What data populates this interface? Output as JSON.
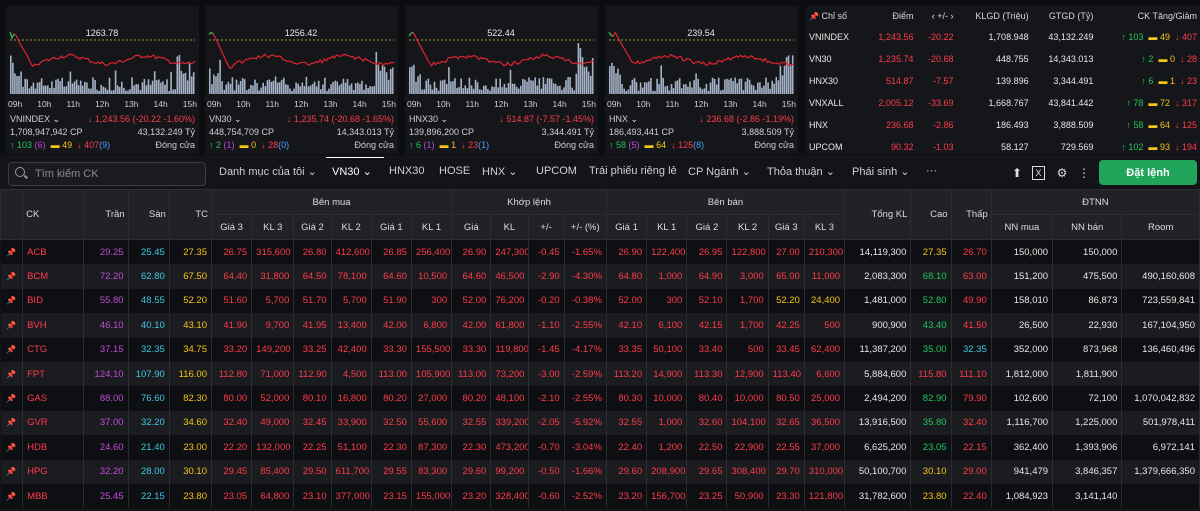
{
  "charts": [
    {
      "ref": "1263.78",
      "name": "VNINDEX",
      "change": "↓ 1,243.56 (-20.22 -1.60%)",
      "volume": "1,708,947,942 CP",
      "value": "43,132.249 Tỷ",
      "up": "↑ 103",
      "up_n": "(6)",
      "ref_cnt": "49",
      "down": "↓ 407",
      "down_n": "(9)",
      "status": "Đóng cửa"
    },
    {
      "ref": "1256.42",
      "name": "VN30",
      "change": "↓ 1,235.74 (-20.68 -1.65%)",
      "volume": "448,754,709 CP",
      "value": "14,343.013 Tỷ",
      "up": "↑ 2",
      "up_n": "(1)",
      "ref_cnt": "0",
      "down": "↓ 28",
      "down_n": "(0)",
      "status": "Đóng cửa"
    },
    {
      "ref": "522.44",
      "name": "HNX30",
      "change": "↓ 514.87 (-7.57 -1.45%)",
      "volume": "139,896,200 CP",
      "value": "3,344.491 Tỷ",
      "up": "↑ 6",
      "up_n": "(1)",
      "ref_cnt": "1",
      "down": "↓ 23",
      "down_n": "(1)",
      "status": "Đóng cửa"
    },
    {
      "ref": "239.54",
      "name": "HNX",
      "change": "↓ 236.68 (-2.86 -1.19%)",
      "volume": "186,493,441 CP",
      "value": "3,888.509 Tỷ",
      "up": "↑ 58",
      "up_n": "(5)",
      "ref_cnt": "64",
      "down": "↓ 125",
      "down_n": "(8)",
      "status": "Đóng cửa"
    }
  ],
  "chart_times": [
    "09h",
    "10h",
    "11h",
    "12h",
    "13h",
    "14h",
    "15h"
  ],
  "index_table": {
    "headers": [
      "Chỉ số",
      "Điểm",
      "+/-",
      "KLGD (Triệu)",
      "GTGD (Tỷ)",
      "CK Tăng/Giảm"
    ],
    "rows": [
      {
        "name": "VNINDEX",
        "point": "1,243.56",
        "chg": "-20.22",
        "vol": "1,708.948",
        "val": "43,132.249",
        "up": "↑ 103",
        "ref": "49",
        "down": "↓ 407"
      },
      {
        "name": "VN30",
        "point": "1,235.74",
        "chg": "-20.68",
        "vol": "448.755",
        "val": "14,343.013",
        "up": "↑ 2",
        "ref": "0",
        "down": "↓ 28"
      },
      {
        "name": "HNX30",
        "point": "514.87",
        "chg": "-7.57",
        "vol": "139.896",
        "val": "3,344.491",
        "up": "↑ 6",
        "ref": "1",
        "down": "↓ 23"
      },
      {
        "name": "VNXALL",
        "point": "2,005.12",
        "chg": "-33.69",
        "vol": "1,668.767",
        "val": "43,841.442",
        "up": "↑ 78",
        "ref": "72",
        "down": "↓ 317"
      },
      {
        "name": "HNX",
        "point": "236.68",
        "chg": "-2.86",
        "vol": "186.493",
        "val": "3,888.509",
        "up": "↑ 58",
        "ref": "64",
        "down": "↓ 125"
      },
      {
        "name": "UPCOM",
        "point": "90.32",
        "chg": "-1.03",
        "vol": "58.127",
        "val": "729.569",
        "up": "↑ 102",
        "ref": "93",
        "down": "↓ 194"
      }
    ]
  },
  "toolbar": {
    "search_placeholder": "Tìm kiếm CK",
    "tabs": [
      "Danh mục của tôi",
      "VN30",
      "HNX30",
      "HOSE",
      "HNX",
      "UPCOM",
      "Trái phiếu riêng lẻ",
      "CP Ngành",
      "Thỏa thuận",
      "Phái sinh",
      "···"
    ],
    "order_label": "Đặt lệnh"
  },
  "board": {
    "group_headers": {
      "buy": "Bên mua",
      "match": "Khớp lệnh",
      "sell": "Bên bán",
      "foreign": "ĐTNN"
    },
    "headers": {
      "ck": "CK",
      "tran": "Trần",
      "san": "Sàn",
      "tc": "TC",
      "g3": "Giá 3",
      "kl3": "KL 3",
      "g2": "Giá 2",
      "kl2": "KL 2",
      "g1": "Giá 1",
      "kl1": "KL 1",
      "mp": "Giá",
      "mkl": "KL",
      "pm": "+/-",
      "pmp": "+/- (%)",
      "sg1": "Giá 1",
      "skl1": "KL 1",
      "sg2": "Giá 2",
      "skl2": "KL 2",
      "sg3": "Giá 3",
      "skl3": "KL 3",
      "tkl": "Tổng KL",
      "cao": "Cao",
      "thap": "Thấp",
      "nnm": "NN mua",
      "nnb": "NN bán",
      "room": "Room"
    },
    "rows": [
      [
        "ACB",
        "29.25",
        "25.45",
        "27.35",
        "26.75",
        "315,600",
        "26.80",
        "412,600",
        "26.85",
        "256,400",
        "26.90",
        "247,300",
        "-0.45",
        "-1.65%",
        "26.90",
        "122,400",
        "26.95",
        "122,800",
        "27.00",
        "210,300",
        "14,119,300",
        "27.35",
        "26.70",
        "150,000",
        "150,000",
        ""
      ],
      [
        "BCM",
        "72.20",
        "62.80",
        "67.50",
        "64.40",
        "31,800",
        "64.50",
        "78,100",
        "64.60",
        "10,500",
        "64.60",
        "46,500",
        "-2.90",
        "-4.30%",
        "64.80",
        "1,000",
        "64.90",
        "3,000",
        "65.00",
        "11,000",
        "2,083,300",
        "68.10",
        "63.00",
        "151,200",
        "475,500",
        "490,160,608"
      ],
      [
        "BID",
        "55.80",
        "48.55",
        "52.20",
        "51.60",
        "5,700",
        "51.70",
        "5,700",
        "51.90",
        "300",
        "52.00",
        "76,200",
        "-0.20",
        "-0.38%",
        "52.00",
        "300",
        "52.10",
        "1,700",
        "52.20",
        "24,400",
        "1,481,000",
        "52.80",
        "49.90",
        "158,010",
        "86,873",
        "723,559,841"
      ],
      [
        "BVH",
        "46.10",
        "40.10",
        "43.10",
        "41.90",
        "9,700",
        "41.95",
        "13,400",
        "42.00",
        "6,800",
        "42.00",
        "61,800",
        "-1.10",
        "-2.55%",
        "42.10",
        "6,100",
        "42.15",
        "1,700",
        "42.25",
        "500",
        "900,900",
        "43.40",
        "41.50",
        "26,500",
        "22,930",
        "167,104,950"
      ],
      [
        "CTG",
        "37.15",
        "32.35",
        "34.75",
        "33.20",
        "149,200",
        "33.25",
        "42,400",
        "33.30",
        "155,500",
        "33.30",
        "119,800",
        "-1.45",
        "-4.17%",
        "33.35",
        "50,100",
        "33.40",
        "500",
        "33.45",
        "62,400",
        "11,387,200",
        "35.00",
        "32.35",
        "352,000",
        "873,968",
        "136,460,496"
      ],
      [
        "FPT",
        "124.10",
        "107.90",
        "116.00",
        "112.80",
        "71,000",
        "112.90",
        "4,500",
        "113.00",
        "105,900",
        "113.00",
        "73,200",
        "-3.00",
        "-2.59%",
        "113.20",
        "14,900",
        "113.30",
        "12,900",
        "113.40",
        "6,600",
        "5,884,600",
        "115.80",
        "111.10",
        "1,812,000",
        "1,811,900",
        ""
      ],
      [
        "GAS",
        "88.00",
        "76.60",
        "82.30",
        "80.00",
        "52,000",
        "80.10",
        "16,800",
        "80.20",
        "27,000",
        "80.20",
        "48,100",
        "-2.10",
        "-2.55%",
        "80.30",
        "10,000",
        "80.40",
        "10,000",
        "80.50",
        "25,000",
        "2,494,200",
        "82.90",
        "79.90",
        "102,600",
        "72,100",
        "1,070,042,832"
      ],
      [
        "GVR",
        "37.00",
        "32.20",
        "34.60",
        "32.40",
        "49,000",
        "32.45",
        "33,900",
        "32.50",
        "55,600",
        "32.55",
        "339,200",
        "-2.05",
        "-5.92%",
        "32.55",
        "1,000",
        "32.60",
        "104,100",
        "32.65",
        "36,500",
        "13,916,500",
        "35.80",
        "32.40",
        "1,116,700",
        "1,225,000",
        "501,978,411"
      ],
      [
        "HDB",
        "24.60",
        "21.40",
        "23.00",
        "22.20",
        "132,000",
        "22.25",
        "51,100",
        "22.30",
        "87,300",
        "22.30",
        "473,200",
        "-0.70",
        "-3.04%",
        "22.40",
        "1,200",
        "22.50",
        "22,900",
        "22.55",
        "37,000",
        "6,625,200",
        "23.05",
        "22.15",
        "362,400",
        "1,393,906",
        "6,972,141"
      ],
      [
        "HPG",
        "32.20",
        "28.00",
        "30.10",
        "29.45",
        "85,400",
        "29.50",
        "611,700",
        "29.55",
        "83,300",
        "29.60",
        "99,200",
        "-0.50",
        "-1.66%",
        "29.60",
        "208,900",
        "29.65",
        "308,400",
        "29.70",
        "310,000",
        "50,100,700",
        "30.10",
        "29.00",
        "941,479",
        "3,846,357",
        "1,379,666,350"
      ],
      [
        "MBB",
        "25.45",
        "22.15",
        "23.80",
        "23.05",
        "64,800",
        "23.10",
        "377,000",
        "23.15",
        "155,000",
        "23.20",
        "328,400",
        "-0.60",
        "-2.52%",
        "23.20",
        "156,700",
        "23.25",
        "50,900",
        "23.30",
        "121,800",
        "31,782,600",
        "23.80",
        "22.40",
        "1,084,923",
        "3,141,140",
        ""
      ]
    ],
    "colors": [
      [
        "red",
        "purple",
        "cyan",
        "yellow",
        "red",
        "red",
        "red",
        "red",
        "red",
        "red",
        "red",
        "red",
        "red",
        "red",
        "red",
        "red",
        "red",
        "red",
        "red",
        "red",
        "white",
        "yellow",
        "red",
        "white",
        "white",
        "white"
      ],
      [
        "red",
        "purple",
        "cyan",
        "yellow",
        "red",
        "red",
        "red",
        "red",
        "red",
        "red",
        "red",
        "red",
        "red",
        "red",
        "red",
        "red",
        "red",
        "red",
        "red",
        "red",
        "white",
        "green",
        "red",
        "white",
        "white",
        "white"
      ],
      [
        "red",
        "purple",
        "cyan",
        "yellow",
        "red",
        "red",
        "red",
        "red",
        "red",
        "red",
        "red",
        "red",
        "red",
        "red",
        "red",
        "red",
        "red",
        "red",
        "yellow",
        "yellow",
        "white",
        "green",
        "red",
        "white",
        "white",
        "white"
      ],
      [
        "red",
        "purple",
        "cyan",
        "yellow",
        "red",
        "red",
        "red",
        "red",
        "red",
        "red",
        "red",
        "red",
        "red",
        "red",
        "red",
        "red",
        "red",
        "red",
        "red",
        "red",
        "white",
        "green",
        "red",
        "white",
        "white",
        "white"
      ],
      [
        "red",
        "purple",
        "cyan",
        "yellow",
        "red",
        "red",
        "red",
        "red",
        "red",
        "red",
        "red",
        "red",
        "red",
        "red",
        "red",
        "red",
        "red",
        "red",
        "red",
        "red",
        "white",
        "green",
        "cyan",
        "white",
        "white",
        "white"
      ],
      [
        "red",
        "purple",
        "cyan",
        "yellow",
        "red",
        "red",
        "red",
        "red",
        "red",
        "red",
        "red",
        "red",
        "red",
        "red",
        "red",
        "red",
        "red",
        "red",
        "red",
        "red",
        "white",
        "red",
        "red",
        "white",
        "white",
        "white"
      ],
      [
        "red",
        "purple",
        "cyan",
        "yellow",
        "red",
        "red",
        "red",
        "red",
        "red",
        "red",
        "red",
        "red",
        "red",
        "red",
        "red",
        "red",
        "red",
        "red",
        "red",
        "red",
        "white",
        "green",
        "red",
        "white",
        "white",
        "white"
      ],
      [
        "red",
        "purple",
        "cyan",
        "yellow",
        "red",
        "red",
        "red",
        "red",
        "red",
        "red",
        "red",
        "red",
        "red",
        "red",
        "red",
        "red",
        "red",
        "red",
        "red",
        "red",
        "white",
        "green",
        "red",
        "white",
        "white",
        "white"
      ],
      [
        "red",
        "purple",
        "cyan",
        "yellow",
        "red",
        "red",
        "red",
        "red",
        "red",
        "red",
        "red",
        "red",
        "red",
        "red",
        "red",
        "red",
        "red",
        "red",
        "red",
        "red",
        "white",
        "green",
        "red",
        "white",
        "white",
        "white"
      ],
      [
        "red",
        "purple",
        "cyan",
        "yellow",
        "red",
        "red",
        "red",
        "red",
        "red",
        "red",
        "red",
        "red",
        "red",
        "red",
        "red",
        "red",
        "red",
        "red",
        "red",
        "red",
        "white",
        "yellow",
        "red",
        "white",
        "white",
        "white"
      ],
      [
        "red",
        "purple",
        "cyan",
        "yellow",
        "red",
        "red",
        "red",
        "red",
        "red",
        "red",
        "red",
        "red",
        "red",
        "red",
        "red",
        "red",
        "red",
        "red",
        "red",
        "red",
        "white",
        "yellow",
        "red",
        "white",
        "white",
        "white"
      ]
    ]
  }
}
